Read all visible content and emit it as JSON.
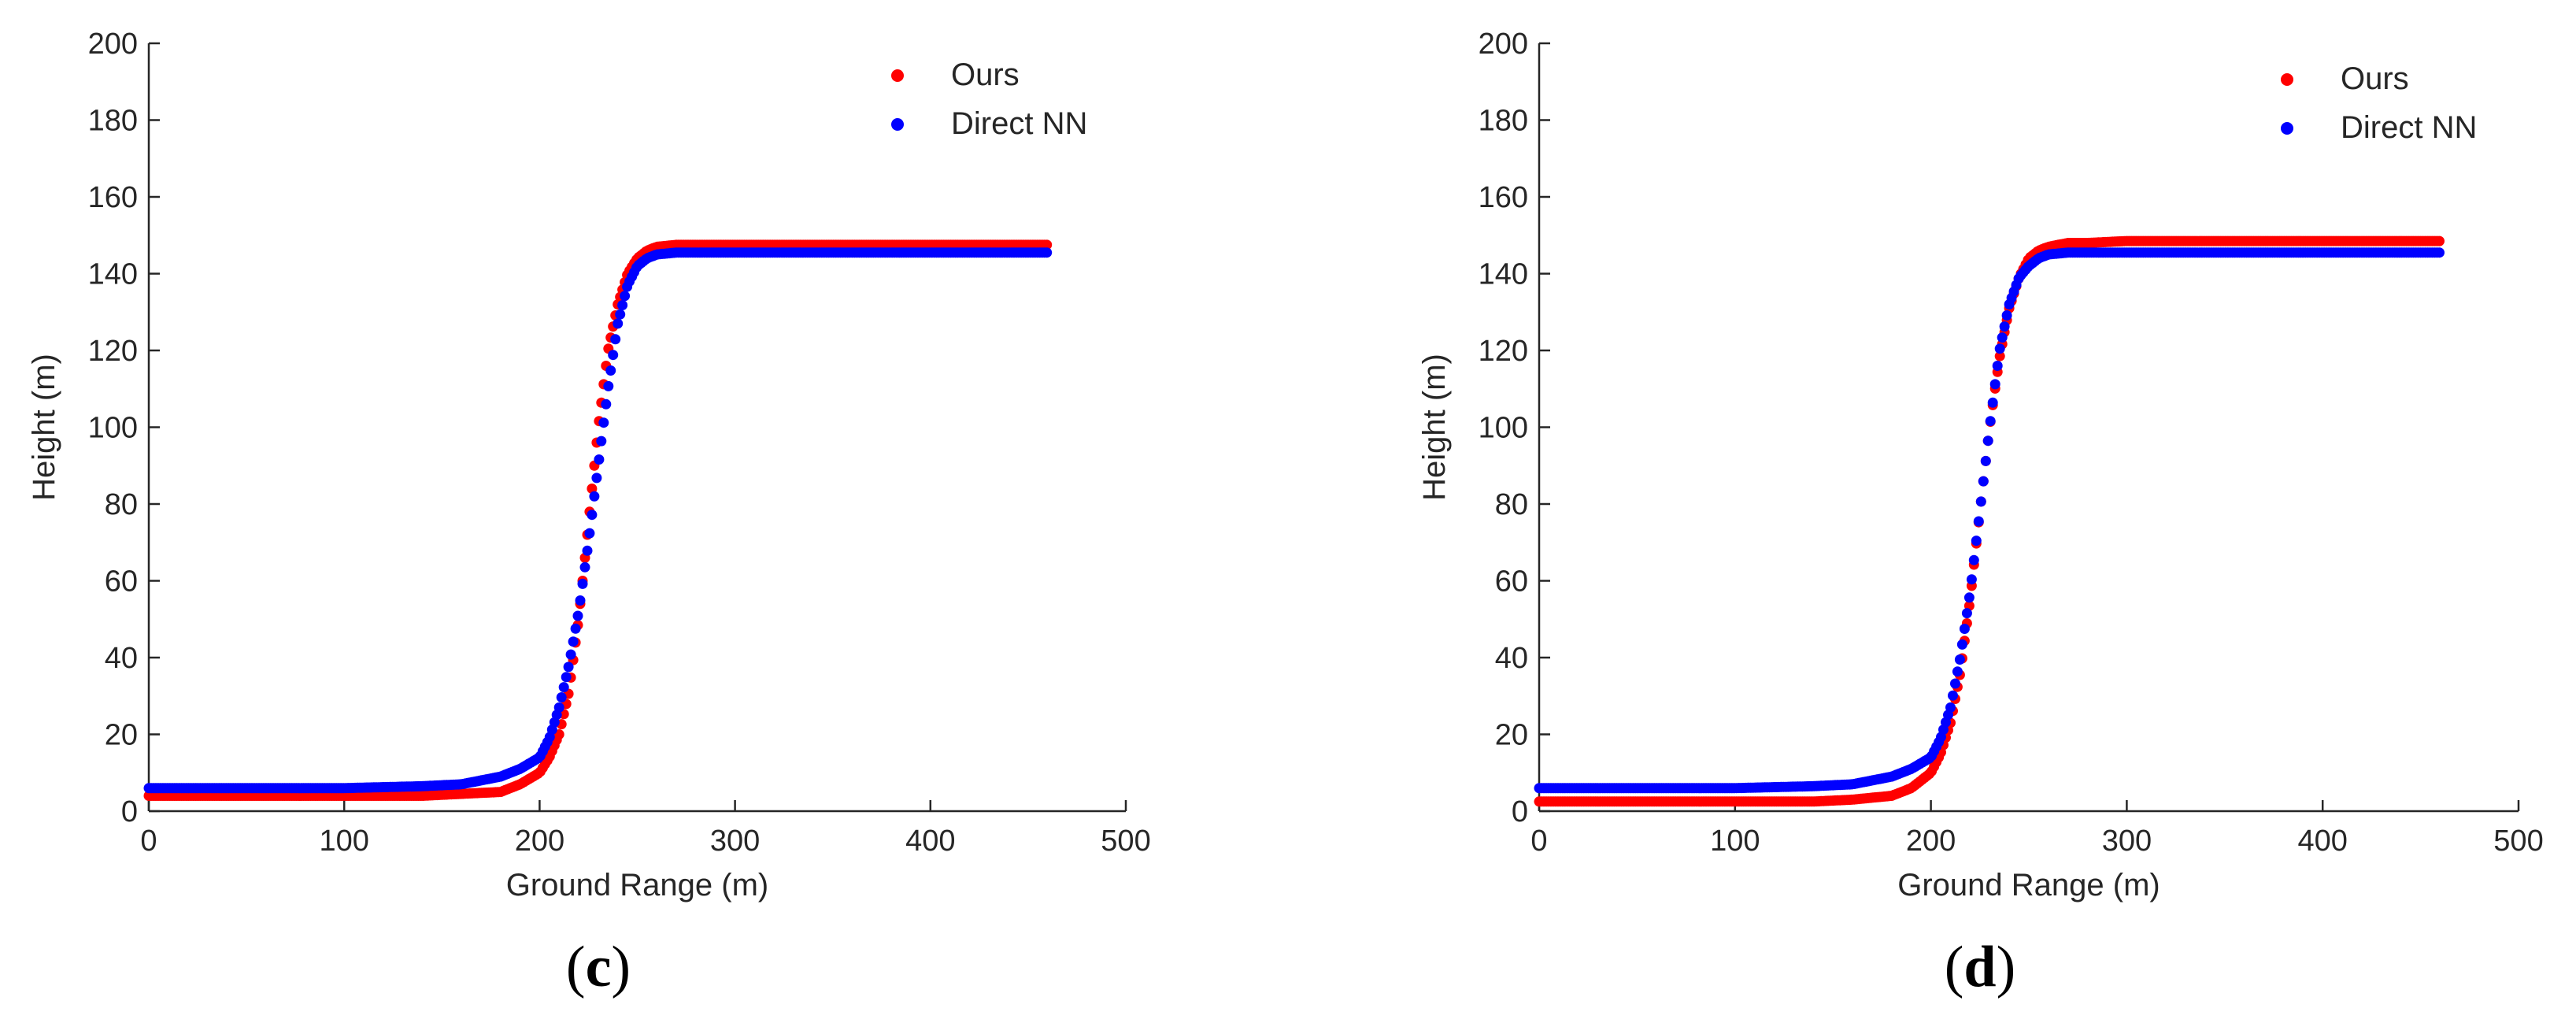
{
  "chart_data": [
    {
      "type": "scatter",
      "panel_label": "(c)",
      "panel_letter": "c",
      "title": "",
      "xlabel": "Ground Range (m)",
      "ylabel": "Height (m)",
      "xlim": [
        0,
        500
      ],
      "ylim": [
        0,
        200
      ],
      "xticks": [
        0,
        100,
        200,
        300,
        400,
        500
      ],
      "yticks": [
        0,
        20,
        40,
        60,
        80,
        100,
        120,
        140,
        160,
        180,
        200
      ],
      "legend_position": "top-right",
      "grid": false,
      "series": [
        {
          "name": "Ours",
          "color": "#ff0000",
          "x": [
            0,
            50,
            100,
            140,
            160,
            180,
            190,
            200,
            205,
            210,
            215,
            220,
            225,
            230,
            235,
            240,
            245,
            250,
            255,
            260,
            270,
            280,
            300,
            350,
            400,
            460
          ],
          "y": [
            4,
            4,
            4,
            4,
            4.5,
            5,
            7,
            10,
            14,
            20,
            31,
            50,
            75,
            100,
            120,
            132,
            140,
            144,
            146,
            147,
            147.5,
            147.5,
            147.5,
            147.5,
            147.5,
            147.5
          ]
        },
        {
          "name": "Direct NN",
          "color": "#0000ff",
          "x": [
            0,
            50,
            100,
            140,
            160,
            180,
            190,
            200,
            205,
            210,
            215,
            220,
            225,
            230,
            235,
            240,
            245,
            250,
            255,
            260,
            270,
            280,
            300,
            350,
            400,
            460
          ],
          "y": [
            6,
            6,
            6,
            6.5,
            7,
            9,
            11,
            14,
            19,
            27,
            38,
            52,
            70,
            90,
            110,
            127,
            137,
            142,
            144,
            145,
            145.5,
            145.5,
            145.5,
            145.5,
            145.5,
            145.5
          ]
        }
      ]
    },
    {
      "type": "scatter",
      "panel_label": "(d)",
      "panel_letter": "d",
      "title": "",
      "xlabel": "Ground Range (m)",
      "ylabel": "Height (m)",
      "xlim": [
        0,
        500
      ],
      "ylim": [
        0,
        200
      ],
      "xticks": [
        0,
        100,
        200,
        300,
        400,
        500
      ],
      "yticks": [
        0,
        20,
        40,
        60,
        80,
        100,
        120,
        140,
        160,
        180,
        200
      ],
      "legend_position": "top-right",
      "grid": false,
      "series": [
        {
          "name": "Ours",
          "color": "#ff0000",
          "x": [
            0,
            50,
            100,
            140,
            160,
            180,
            190,
            200,
            205,
            210,
            215,
            220,
            225,
            230,
            235,
            240,
            245,
            250,
            255,
            260,
            270,
            280,
            300,
            350,
            400,
            460
          ],
          "y": [
            2.5,
            2.5,
            2.5,
            2.5,
            3,
            4,
            6,
            10,
            15,
            23,
            36,
            55,
            78,
            100,
            118,
            131,
            139,
            144,
            146,
            147,
            148,
            148,
            148.5,
            148.5,
            148.5,
            148.5
          ]
        },
        {
          "name": "Direct NN",
          "color": "#0000ff",
          "x": [
            0,
            50,
            100,
            140,
            160,
            180,
            190,
            200,
            205,
            210,
            215,
            220,
            225,
            230,
            235,
            240,
            245,
            250,
            255,
            260,
            270,
            280,
            300,
            350,
            400,
            460
          ],
          "y": [
            6,
            6,
            6,
            6.5,
            7,
            9,
            11,
            14,
            19,
            27,
            40,
            57,
            78,
            100,
            120,
            132,
            139,
            142,
            144,
            145,
            145.5,
            145.5,
            145.5,
            145.5,
            145.5,
            145.5
          ]
        }
      ]
    }
  ]
}
